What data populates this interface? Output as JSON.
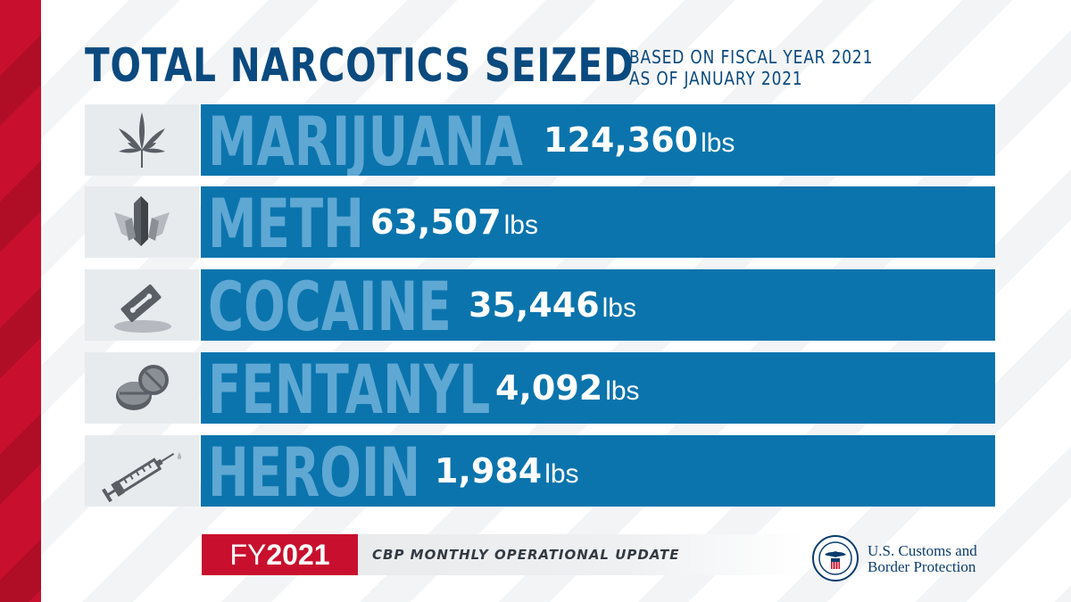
{
  "header": {
    "title": "TOTAL NARCOTICS SEIZED",
    "subtitle_line1": "BASED ON FISCAL YEAR 2021",
    "subtitle_line2": "AS OF JANUARY 2021"
  },
  "rows": [
    {
      "drug": "MARIJUANA",
      "amount": "124,360",
      "unit": "lbs",
      "icon": "marijuana-leaf-icon"
    },
    {
      "drug": "METH",
      "amount": "63,507",
      "unit": "lbs",
      "icon": "crystal-icon"
    },
    {
      "drug": "COCAINE",
      "amount": "35,446",
      "unit": "lbs",
      "icon": "razor-blade-icon"
    },
    {
      "drug": "FENTANYL",
      "amount": "4,092",
      "unit": "lbs",
      "icon": "pills-icon"
    },
    {
      "drug": "HEROIN",
      "amount": "1,984",
      "unit": "lbs",
      "icon": "syringe-icon"
    }
  ],
  "footer": {
    "fy_prefix": "FY",
    "fy_year": "2021",
    "update_label": "CBP MONTHLY OPERATIONAL UPDATE",
    "agency_line1": "U.S. Customs and",
    "agency_line2": "Border Protection"
  },
  "colors": {
    "navy": "#0b4a7f",
    "bar_blue": "#0b74ad",
    "drug_text": "#5fa8d3",
    "red": "#c8102e"
  }
}
